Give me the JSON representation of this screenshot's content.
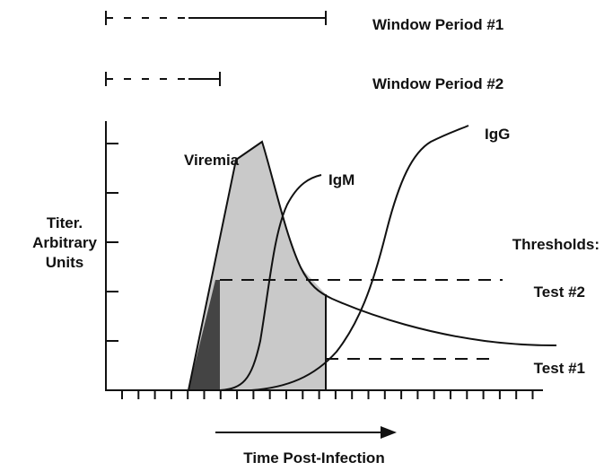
{
  "window_periods": [
    "Window Period #1",
    "Window Period #2"
  ],
  "curves": [
    "Viremia",
    "IgM",
    "IgG"
  ],
  "y_axis_label": [
    "Titer.",
    "Arbitrary",
    "Units"
  ],
  "thresholds": {
    "title": "Thresholds:",
    "tests": [
      "Test #2",
      "Test #1"
    ]
  },
  "x_axis_label": "Time Post-Infection"
}
